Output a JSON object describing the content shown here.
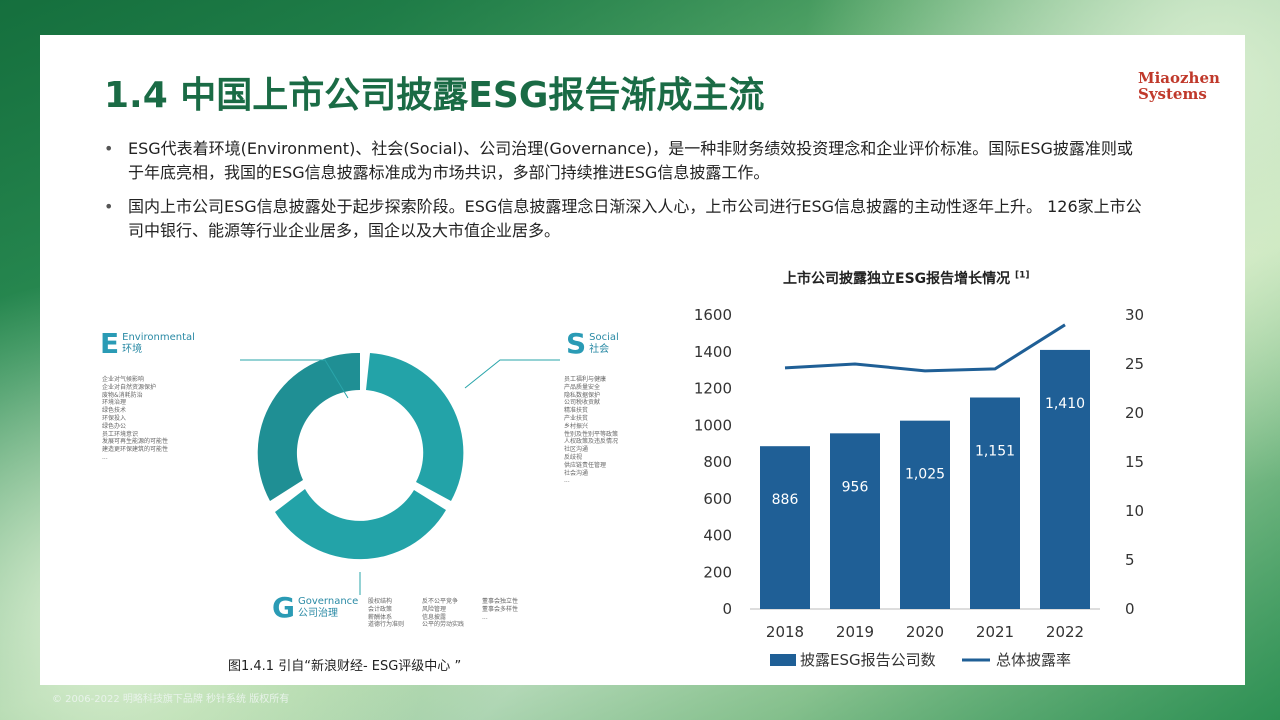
{
  "slide": {
    "title": "1.4 中国上市公司披露ESG报告渐成主流",
    "logo_line1": "Miaozhen",
    "logo_line2": "Systems",
    "bullets": [
      "ESG代表着环境(Environment)、社会(Social)、公司治理(Governance)，是一种非财务绩效投资理念和企业评价标准。国际ESG披露准则或于年底亮相，我国的ESG信息披露标准成为市场共识，多部门持续推进ESG信息披露工作。",
      "国内上市公司ESG信息披露处于起步探索阶段。ESG信息披露理念日渐深入人心，上市公司进行ESG信息披露的主动性逐年上升。 126家上市公司中银行、能源等行业企业居多，国企以及大市值企业居多。"
    ],
    "bullet_symbol": "•",
    "caption": "图1.4.1 引自“新浪财经- ESG评级中心 ”",
    "footer": "© 2006-2022 明略科技旗下品牌 秒针系统 版权所有"
  },
  "esg": {
    "e": {
      "letter": "E",
      "en": "Environmental",
      "zh": "环境",
      "items": [
        "企业对气候影响",
        "企业对自然资源保护",
        "废物&消耗防治",
        "环境治理",
        "绿色技术",
        "环保投入",
        "绿色办公",
        "员工环境意识",
        "发展可再生能源的可能性",
        "建造更环保建筑的可能性",
        "..."
      ]
    },
    "s": {
      "letter": "S",
      "en": "Social",
      "zh": "社会",
      "items": [
        "员工福利与健康",
        "产品质量安全",
        "隐私数据保护",
        "公司税收贡献",
        "精准扶贫",
        "产业扶贫",
        "乡村振兴",
        "性别及性别平等政策",
        "人权政策及违反情况",
        "社区沟通",
        "反歧视",
        "供应链责任管理",
        "社会沟通",
        "..."
      ]
    },
    "g": {
      "letter": "G",
      "en": "Governance",
      "zh": "公司治理",
      "col1": [
        "股权结构",
        "会计政策",
        "薪酬体系",
        "道德行为准则"
      ],
      "col2": [
        "反不公平竞争",
        "风险管理",
        "信息披露",
        "公平的劳动实践"
      ],
      "col3": [
        "董事会独立性",
        "董事会多样性",
        "..."
      ]
    },
    "colors": {
      "ring": "#23a3a8",
      "ring_dark": "#1f8f94",
      "text": "#2a8aa5"
    }
  },
  "chart_data": {
    "type": "bar",
    "title": "上市公司披露独立ESG报告增长情况",
    "title_sup": "[1]",
    "categories": [
      "2018",
      "2019",
      "2020",
      "2021",
      "2022"
    ],
    "series": [
      {
        "name": "披露ESG报告公司数",
        "values": [
          886,
          956,
          1025,
          1151,
          1410
        ],
        "labels": [
          "886",
          "956",
          "1,025",
          "1,151",
          "1,410"
        ],
        "color": "#1f5f96",
        "axis": "left"
      },
      {
        "name": "总体披露率",
        "values": [
          24.6,
          25.0,
          24.3,
          24.5,
          29.0
        ],
        "color": "#1f5f96",
        "axis": "right",
        "type": "line"
      }
    ],
    "ylim_left": [
      0,
      1600
    ],
    "yticks_left": [
      "0",
      "200",
      "400",
      "600",
      "800",
      "1000",
      "1200",
      "1400",
      "1600"
    ],
    "ylim_right": [
      0,
      30
    ],
    "yticks_right": [
      "0",
      "5",
      "10",
      "15",
      "20",
      "25",
      "30"
    ],
    "legend": "bottom"
  }
}
